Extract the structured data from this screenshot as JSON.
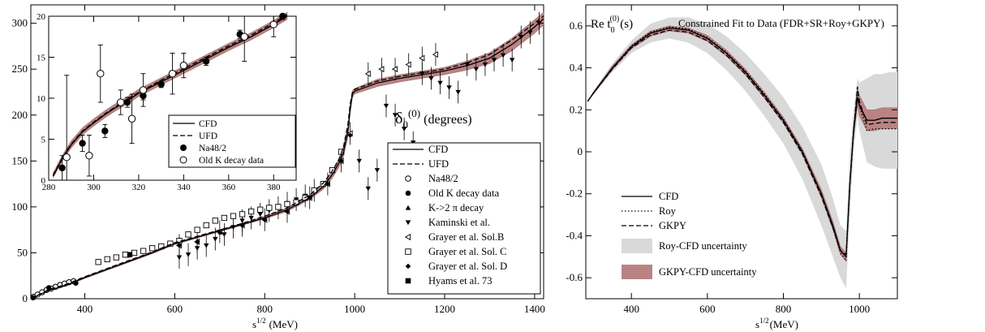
{
  "colors": {
    "band_red": "#b98383",
    "band_red_edge": "#9c6565",
    "band_gray": "#d9d9d9",
    "line": "#000000"
  },
  "chart_data": [
    {
      "type": "line",
      "title": "δ0(0) (degrees)",
      "title_main": "δ",
      "title_sub": "0",
      "title_sup": "(0)",
      "title_tail": "(degrees)",
      "xlabel_main": "s",
      "xlabel_sup": "1/2",
      "xlabel_tail": "(MeV)",
      "xlim": [
        280,
        1420
      ],
      "ylim": [
        0,
        320
      ],
      "xticks": [
        400,
        600,
        800,
        1000,
        1200,
        1400
      ],
      "yticks": [
        0,
        50,
        100,
        150,
        200,
        250,
        300
      ],
      "legend_position": "right",
      "legend": [
        "CFD",
        "UFD",
        "Na48/2",
        "Old K decay data",
        "K->2 π decay",
        "Kaminski et al.",
        "Grayer et al. Sol.B",
        "Grayer et al. Sol. C",
        "Grayer et al. Sol. D",
        "Hyams et al. 73"
      ],
      "series": [
        {
          "name": "CFD",
          "style": "solid",
          "x": [
            280,
            320,
            360,
            400,
            450,
            500,
            550,
            600,
            650,
            700,
            750,
            800,
            850,
            900,
            930,
            950,
            965,
            975,
            985,
            990,
            995,
            1000,
            1050,
            1100,
            1150,
            1200,
            1250,
            1300,
            1350,
            1400,
            1420
          ],
          "y": [
            0,
            9,
            15,
            23,
            32,
            41,
            50,
            60,
            67,
            74,
            81,
            88,
            97,
            110,
            122,
            135,
            148,
            160,
            182,
            207,
            223,
            226,
            235,
            240,
            244,
            248,
            254,
            262,
            277,
            296,
            305
          ]
        },
        {
          "name": "UFD",
          "style": "dashed",
          "x": [
            280,
            320,
            360,
            400,
            450,
            500,
            550,
            600,
            650,
            700,
            750,
            800,
            850,
            900,
            930,
            950,
            965,
            975,
            985,
            990,
            995,
            1000,
            1050,
            1100,
            1150,
            1200,
            1250,
            1300,
            1350,
            1400,
            1420
          ],
          "y": [
            0,
            10,
            16,
            24,
            33,
            42,
            51,
            61,
            68,
            75,
            82,
            90,
            99,
            113,
            126,
            139,
            152,
            165,
            190,
            212,
            225,
            228,
            237,
            242,
            246,
            250,
            257,
            266,
            282,
            300,
            308
          ]
        },
        {
          "name": "Na48/2",
          "marker": "open-circle",
          "x": [
            286,
            295,
            305,
            315,
            325,
            335,
            345,
            355,
            365,
            375
          ],
          "y": [
            2,
            4.5,
            7,
            9.5,
            11,
            13,
            15,
            16.5,
            18,
            19
          ]
        },
        {
          "name": "Old K decay data",
          "marker": "filled-circle",
          "x": [
            285,
            320,
            380
          ],
          "y": [
            1,
            12,
            17
          ]
        },
        {
          "name": "K->2 π decay",
          "marker": "up-triangle",
          "x": [
            494
          ],
          "y": [
            47
          ]
        },
        {
          "name": "Kaminski et al.",
          "marker": "down-triangle",
          "x": [
            610,
            630,
            650,
            670,
            690,
            710,
            730,
            750,
            770,
            790,
            810,
            830,
            850,
            870,
            890,
            910,
            1010,
            1030,
            1050,
            1070,
            1090,
            1110,
            1130,
            1150,
            1170,
            1190,
            1210,
            1230,
            1250,
            1270,
            1290,
            1310,
            1330,
            1350,
            1370,
            1390,
            1410
          ],
          "y": [
            45,
            48,
            55,
            58,
            65,
            70,
            78,
            85,
            88,
            92,
            96,
            99,
            104,
            108,
            112,
            118,
            150,
            120,
            140,
            210,
            200,
            185,
            170,
            245,
            240,
            235,
            230,
            225,
            255,
            250,
            255,
            260,
            265,
            260,
            285,
            290,
            300
          ]
        },
        {
          "name": "Grayer et al. Sol.B",
          "marker": "left-triangle",
          "x": [
            610,
            650,
            700,
            750,
            800,
            850,
            900,
            940,
            970,
            990,
            1030,
            1060,
            1090,
            1120,
            1150,
            1180
          ],
          "y": [
            58,
            62,
            73,
            80,
            86,
            95,
            110,
            125,
            150,
            180,
            245,
            250,
            250,
            255,
            262,
            266
          ]
        },
        {
          "name": "Grayer et al. Sol. C",
          "marker": "open-square",
          "x": [
            430,
            450,
            470,
            490,
            510,
            530,
            550,
            570,
            590,
            610,
            630,
            650,
            670,
            690,
            710,
            730,
            750,
            770,
            790,
            810,
            830,
            850,
            870,
            890,
            910,
            930,
            950,
            970
          ],
          "y": [
            40,
            43,
            45,
            48,
            50,
            52,
            55,
            57,
            60,
            63,
            70,
            75,
            80,
            85,
            88,
            90,
            92,
            95,
            97,
            99,
            100,
            103,
            105,
            110,
            118,
            125,
            140,
            160
          ]
        },
        {
          "name": "Grayer et al. Sol. D",
          "marker": "filled-diamond",
          "x": [
            610,
            650,
            700,
            750,
            800,
            850,
            900,
            940,
            970,
            990
          ],
          "y": [
            58,
            62,
            72,
            80,
            86,
            95,
            110,
            125,
            150,
            178
          ]
        },
        {
          "name": "Hyams et al. 73",
          "marker": "filled-square",
          "x": [
            500
          ],
          "y": [
            48
          ]
        }
      ],
      "band": {
        "lower": [
          0,
          8,
          14,
          22,
          31,
          40,
          49,
          59,
          66,
          73,
          80,
          87,
          95,
          108,
          119,
          131,
          143,
          154,
          176,
          201,
          219,
          223,
          231,
          236,
          240,
          244,
          249,
          256,
          270,
          289,
          298
        ],
        "upper": [
          1,
          10,
          16,
          24,
          33,
          42,
          51,
          61,
          68,
          75,
          82,
          90,
          99,
          113,
          125,
          139,
          153,
          166,
          188,
          212,
          227,
          229,
          239,
          244,
          248,
          252,
          259,
          268,
          284,
          304,
          312
        ]
      }
    },
    {
      "type": "line",
      "title": "",
      "xlim": [
        280,
        390
      ],
      "ylim": [
        0,
        20
      ],
      "xticks": [
        280,
        300,
        320,
        340,
        360,
        380
      ],
      "yticks": [
        0,
        5,
        10,
        15,
        20
      ],
      "legend_position": "bottom-right",
      "legend": [
        "CFD",
        "UFD",
        "Na48/2",
        "Old K decay data"
      ],
      "series": [
        {
          "name": "CFD",
          "style": "solid",
          "x": [
            282,
            286,
            290,
            295,
            300,
            305,
            310,
            315,
            320,
            330,
            340,
            350,
            360,
            370,
            380,
            386
          ],
          "y": [
            0.5,
            2.6,
            4.3,
            5.9,
            7.0,
            8.0,
            8.9,
            9.7,
            10.6,
            12.0,
            13.4,
            14.8,
            16.2,
            17.5,
            19.0,
            20.0
          ]
        },
        {
          "name": "UFD",
          "style": "dashed",
          "x": [
            282,
            286,
            290,
            295,
            300,
            305,
            310,
            315,
            320,
            330,
            340,
            350,
            360,
            370,
            380,
            386
          ],
          "y": [
            0.6,
            2.7,
            4.4,
            6.0,
            7.1,
            8.1,
            9.0,
            9.9,
            10.7,
            12.2,
            13.6,
            15.0,
            16.4,
            17.7,
            19.2,
            20.2
          ]
        },
        {
          "name": "Na48/2",
          "marker": "filled-circle",
          "x": [
            286,
            295,
            305,
            315,
            322,
            330,
            350,
            365,
            384
          ],
          "y": [
            1.5,
            4.5,
            6.0,
            9.5,
            10.3,
            11.7,
            14.5,
            17.8,
            20.0
          ],
          "err": [
            1.5,
            1.0,
            0.8,
            0.6,
            0.5,
            0.4,
            0.5,
            0.5,
            0.4
          ]
        },
        {
          "name": "Old K decay data",
          "marker": "open-circle",
          "x": [
            288,
            298,
            303,
            312,
            317,
            322,
            335,
            340,
            367,
            380
          ],
          "y": [
            2.8,
            3.0,
            13.0,
            9.5,
            7.5,
            11.0,
            13.0,
            14.0,
            17.5,
            19.0
          ],
          "err": [
            10,
            2.5,
            3.5,
            1.5,
            3.0,
            2.0,
            2.5,
            1.5,
            3.0,
            1.5
          ]
        }
      ],
      "band": {
        "lower": [
          0.3,
          2.3,
          3.9,
          5.5,
          6.6,
          7.6,
          8.5,
          9.3,
          10.2,
          11.6,
          13.0,
          14.4,
          15.8,
          17.1,
          18.6,
          19.6
        ],
        "upper": [
          0.9,
          3.0,
          4.8,
          6.4,
          7.5,
          8.5,
          9.4,
          10.2,
          11.1,
          12.5,
          13.9,
          15.3,
          16.7,
          18.0,
          19.5,
          20.5
        ]
      }
    },
    {
      "type": "line",
      "title": "Constrained Fit to Data (FDR+SR+Roy+GKPY)",
      "ylabel_main": "Re t",
      "ylabel_sub": "0",
      "ylabel_sup": "(0)",
      "ylabel_tail": "(s)",
      "xlabel_main": "s",
      "xlabel_sup": "1/2",
      "xlabel_tail": "(MeV)",
      "xlim": [
        280,
        1100
      ],
      "ylim": [
        -0.7,
        0.7
      ],
      "xticks": [
        400,
        600,
        800,
        1000
      ],
      "yticks": [
        -0.6,
        -0.4,
        -0.2,
        0,
        0.2,
        0.4,
        0.6
      ],
      "ytick_labels": [
        "-0.6",
        "-0.4",
        "-0.2",
        "0",
        "0.2",
        "0.4",
        "0.6"
      ],
      "legend_position": "bottom-left",
      "legend": [
        "CFD",
        "Roy",
        "GKPY",
        "Roy-CFD uncertainty",
        "GKPY-CFD uncertainty"
      ],
      "series": [
        {
          "name": "CFD",
          "style": "solid",
          "x": [
            285,
            300,
            350,
            400,
            450,
            500,
            550,
            600,
            650,
            700,
            750,
            800,
            850,
            900,
            930,
            950,
            965,
            975,
            985,
            995,
            1000,
            1020,
            1040,
            1060,
            1080,
            1100
          ],
          "y": [
            0.24,
            0.28,
            0.4,
            0.5,
            0.565,
            0.59,
            0.58,
            0.54,
            0.47,
            0.38,
            0.27,
            0.15,
            0.0,
            -0.2,
            -0.35,
            -0.47,
            -0.5,
            -0.15,
            0.1,
            0.26,
            0.22,
            0.15,
            0.15,
            0.16,
            0.16,
            0.16
          ]
        },
        {
          "name": "Roy",
          "style": "dotted",
          "x": [
            285,
            300,
            350,
            400,
            450,
            500,
            550,
            600,
            650,
            700,
            750,
            800,
            850,
            900,
            930,
            950,
            965,
            975,
            985,
            995,
            1000,
            1020,
            1040,
            1060,
            1080,
            1100
          ],
          "y": [
            0.24,
            0.28,
            0.4,
            0.505,
            0.57,
            0.595,
            0.585,
            0.545,
            0.475,
            0.385,
            0.275,
            0.155,
            0.005,
            -0.2,
            -0.36,
            -0.48,
            -0.52,
            -0.15,
            0.1,
            0.3,
            0.22,
            0.1,
            0.11,
            0.11,
            0.11,
            0.11
          ]
        },
        {
          "name": "GKPY",
          "style": "dashed",
          "x": [
            285,
            300,
            350,
            400,
            450,
            500,
            550,
            600,
            650,
            700,
            750,
            800,
            850,
            900,
            930,
            950,
            965,
            975,
            985,
            995,
            1000,
            1020,
            1040,
            1060,
            1080,
            1100
          ],
          "y": [
            0.24,
            0.28,
            0.395,
            0.495,
            0.555,
            0.58,
            0.57,
            0.53,
            0.46,
            0.37,
            0.26,
            0.14,
            -0.01,
            -0.21,
            -0.36,
            -0.47,
            -0.49,
            -0.15,
            0.1,
            0.31,
            0.24,
            0.13,
            0.135,
            0.14,
            0.14,
            0.14
          ]
        }
      ],
      "band_gray": {
        "lower": [
          0.24,
          0.27,
          0.38,
          0.47,
          0.52,
          0.54,
          0.52,
          0.47,
          0.39,
          0.29,
          0.17,
          0.04,
          -0.13,
          -0.35,
          -0.5,
          -0.6,
          -0.65,
          -0.3,
          0.0,
          0.17,
          0.1,
          -0.05,
          -0.07,
          -0.08,
          -0.08,
          -0.08
        ],
        "upper": [
          0.24,
          0.29,
          0.42,
          0.53,
          0.61,
          0.64,
          0.64,
          0.61,
          0.55,
          0.47,
          0.37,
          0.26,
          0.12,
          -0.06,
          -0.22,
          -0.35,
          -0.38,
          0.0,
          0.2,
          0.35,
          0.33,
          0.35,
          0.37,
          0.37,
          0.38,
          0.38
        ]
      },
      "band_red": {
        "lower": [
          0.24,
          0.275,
          0.39,
          0.49,
          0.55,
          0.575,
          0.565,
          0.525,
          0.455,
          0.365,
          0.255,
          0.135,
          -0.015,
          -0.22,
          -0.37,
          -0.49,
          -0.52,
          -0.18,
          0.07,
          0.22,
          0.17,
          0.1,
          0.1,
          0.11,
          0.11,
          0.11
        ],
        "upper": [
          0.24,
          0.285,
          0.41,
          0.51,
          0.575,
          0.6,
          0.59,
          0.555,
          0.485,
          0.395,
          0.285,
          0.165,
          0.015,
          -0.18,
          -0.33,
          -0.45,
          -0.48,
          -0.12,
          0.13,
          0.3,
          0.27,
          0.2,
          0.2,
          0.21,
          0.21,
          0.21
        ]
      }
    }
  ]
}
